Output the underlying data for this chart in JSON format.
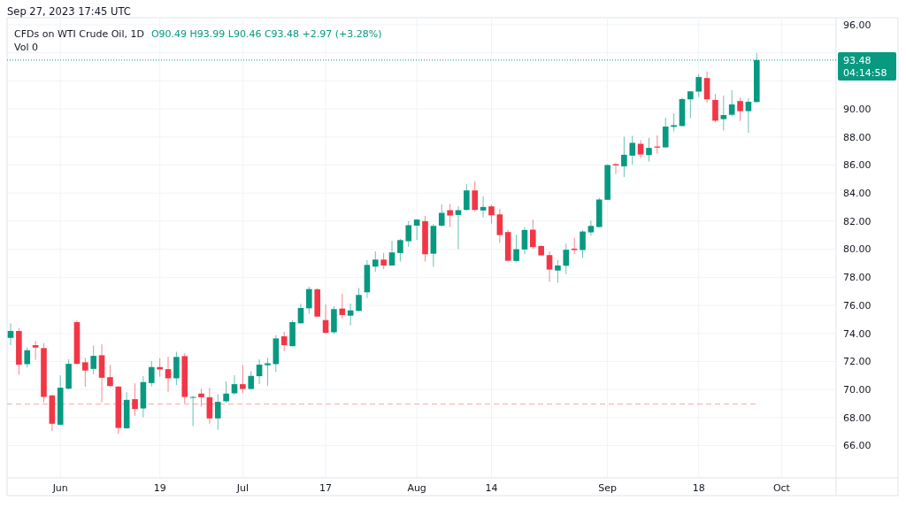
{
  "chart_data": {
    "type": "candlestick",
    "title": "CFDs on WTI Crude Oil, 1D",
    "subtitle": "Sep 27, 2023 17:45 UTC",
    "annotations": [
      "O90.49 H93.99 L90.46 C93.48 +2.97 (+3.28%)",
      "Vol 0",
      "04:14:58"
    ],
    "categories": [
      null,
      null,
      null,
      null,
      null,
      null,
      "Jun",
      null,
      null,
      null,
      null,
      null,
      null,
      null,
      null,
      null,
      null,
      null,
      "19",
      null,
      null,
      null,
      null,
      null,
      null,
      null,
      null,
      null,
      "Jul",
      null,
      null,
      null,
      null,
      null,
      null,
      null,
      null,
      null,
      "17",
      null,
      null,
      null,
      null,
      null,
      null,
      null,
      null,
      null,
      null,
      "Aug",
      null,
      null,
      null,
      null,
      null,
      null,
      null,
      null,
      "14",
      null,
      null,
      null,
      null,
      null,
      null,
      null,
      null,
      null,
      null,
      null,
      null,
      null,
      "Sep",
      null,
      null,
      null,
      null,
      null,
      null,
      null,
      null,
      null,
      null,
      "18",
      null,
      null,
      null,
      null,
      null,
      null,
      null,
      null,
      null,
      "Oct",
      null,
      null,
      null,
      null,
      null,
      null
    ],
    "ohlc": [
      [
        73.68,
        74.72,
        73.16,
        74.17
      ],
      [
        74.17,
        74.36,
        71.05,
        71.77
      ],
      [
        71.81,
        72.99,
        71.56,
        72.8
      ],
      [
        73.16,
        73.47,
        72.11,
        72.99
      ],
      [
        72.95,
        73.31,
        69.09,
        69.47
      ],
      [
        69.58,
        69.62,
        67.05,
        67.56
      ],
      [
        67.49,
        71.01,
        67.45,
        70.13
      ],
      [
        70.06,
        72.15,
        70.0,
        71.83
      ],
      [
        74.8,
        74.93,
        71.8,
        71.83
      ],
      [
        71.94,
        72.27,
        70.19,
        71.35
      ],
      [
        71.47,
        73.14,
        71.09,
        72.4
      ],
      [
        72.44,
        73.22,
        69.09,
        70.84
      ],
      [
        70.88,
        71.75,
        70.21,
        70.25
      ],
      [
        70.21,
        70.25,
        66.84,
        67.26
      ],
      [
        67.24,
        69.81,
        67.2,
        69.26
      ],
      [
        69.31,
        70.44,
        68.13,
        68.61
      ],
      [
        68.65,
        70.95,
        68.02,
        70.53
      ],
      [
        70.46,
        72.02,
        70.21,
        71.6
      ],
      [
        71.6,
        72.23,
        70.91,
        71.43
      ],
      [
        71.45,
        72.34,
        69.83,
        70.8
      ],
      [
        70.8,
        72.69,
        70.32,
        72.32
      ],
      [
        72.38,
        72.57,
        69.01,
        69.47
      ],
      [
        69.41,
        69.54,
        67.39,
        69.47
      ],
      [
        69.71,
        70.04,
        68.78,
        69.45
      ],
      [
        69.45,
        70.11,
        67.56,
        67.94
      ],
      [
        67.94,
        69.66,
        67.12,
        69.12
      ],
      [
        69.16,
        70.57,
        69.05,
        69.71
      ],
      [
        69.73,
        71.01,
        69.62,
        70.38
      ],
      [
        70.38,
        71.75,
        69.73,
        70.04
      ],
      [
        70.04,
        71.31,
        70.0,
        70.97
      ],
      [
        70.95,
        72.15,
        70.38,
        71.77
      ],
      [
        71.73,
        72.27,
        70.27,
        71.87
      ],
      [
        71.81,
        73.89,
        71.26,
        73.64
      ],
      [
        73.79,
        74.11,
        72.74,
        73.16
      ],
      [
        73.09,
        74.93,
        73.07,
        74.8
      ],
      [
        74.72,
        76.11,
        74.7,
        75.81
      ],
      [
        75.79,
        77.33,
        75.41,
        77.16
      ],
      [
        77.14,
        77.24,
        75.16,
        75.2
      ],
      [
        74.95,
        76.06,
        73.96,
        74.04
      ],
      [
        74.08,
        75.94,
        73.96,
        75.73
      ],
      [
        75.77,
        76.82,
        75.05,
        75.31
      ],
      [
        75.26,
        76.13,
        74.57,
        75.64
      ],
      [
        75.6,
        77.24,
        75.58,
        76.74
      ],
      [
        76.93,
        79.22,
        76.53,
        78.88
      ],
      [
        78.76,
        79.85,
        78.38,
        79.26
      ],
      [
        79.26,
        79.73,
        78.59,
        78.84
      ],
      [
        78.84,
        80.59,
        78.82,
        79.77
      ],
      [
        79.73,
        80.74,
        79.12,
        80.65
      ],
      [
        80.57,
        82.0,
        80.17,
        81.71
      ],
      [
        81.68,
        82.15,
        80.65,
        82.11
      ],
      [
        82.0,
        82.38,
        79.12,
        79.64
      ],
      [
        79.68,
        81.79,
        78.74,
        81.66
      ],
      [
        81.68,
        83.2,
        81.6,
        82.59
      ],
      [
        82.78,
        83.22,
        81.58,
        82.4
      ],
      [
        82.44,
        83.05,
        80.0,
        82.78
      ],
      [
        82.8,
        84.63,
        82.74,
        84.19
      ],
      [
        84.19,
        84.84,
        82.67,
        82.8
      ],
      [
        82.76,
        83.77,
        82.27,
        83.01
      ],
      [
        83.05,
        83.16,
        81.83,
        82.42
      ],
      [
        82.48,
        82.88,
        80.46,
        81.01
      ],
      [
        81.22,
        81.37,
        79.14,
        79.18
      ],
      [
        79.16,
        81.03,
        79.05,
        80.0
      ],
      [
        79.98,
        81.58,
        79.64,
        81.37
      ],
      [
        81.39,
        82.11,
        80.02,
        80.15
      ],
      [
        80.23,
        80.27,
        79.54,
        79.56
      ],
      [
        79.58,
        79.85,
        77.68,
        78.55
      ],
      [
        78.48,
        79.22,
        77.62,
        78.84
      ],
      [
        78.82,
        80.4,
        78.23,
        79.96
      ],
      [
        80.04,
        80.8,
        79.64,
        79.94
      ],
      [
        79.94,
        81.37,
        79.37,
        81.26
      ],
      [
        81.2,
        82.04,
        80.95,
        81.66
      ],
      [
        81.58,
        83.66,
        81.56,
        83.54
      ],
      [
        83.52,
        86.04,
        83.5,
        86.0
      ],
      [
        86.06,
        86.14,
        85.36,
        85.97
      ],
      [
        85.91,
        88.02,
        85.15,
        86.73
      ],
      [
        86.67,
        88.08,
        86.03,
        87.58
      ],
      [
        87.51,
        87.77,
        86.5,
        86.75
      ],
      [
        86.71,
        87.94,
        86.25,
        87.22
      ],
      [
        87.32,
        88.11,
        86.8,
        87.24
      ],
      [
        87.26,
        89.37,
        87.24,
        88.74
      ],
      [
        88.72,
        89.67,
        88.4,
        88.84
      ],
      [
        88.78,
        90.79,
        88.76,
        90.7
      ],
      [
        90.68,
        91.25,
        89.33,
        91.25
      ],
      [
        91.23,
        92.48,
        90.85,
        92.27
      ],
      [
        92.2,
        92.67,
        90.45,
        90.68
      ],
      [
        90.64,
        91.06,
        89.03,
        89.16
      ],
      [
        89.27,
        90.96,
        88.46,
        89.56
      ],
      [
        89.58,
        91.32,
        89.46,
        90.32
      ],
      [
        90.56,
        90.81,
        89.14,
        89.84
      ],
      [
        89.84,
        90.75,
        88.3,
        90.51
      ],
      [
        90.49,
        93.99,
        90.46,
        93.48
      ],
      null,
      null,
      null,
      null,
      null,
      null,
      null,
      null,
      null
    ],
    "ylim": [
      63.7,
      96.5
    ],
    "yticks": [
      {
        "value": 66,
        "label": "66.00"
      },
      {
        "value": 68,
        "label": "68.00"
      },
      {
        "value": 70,
        "label": "70.00"
      },
      {
        "value": 72,
        "label": "72.00"
      },
      {
        "value": 74,
        "label": "74.00"
      },
      {
        "value": 76,
        "label": "76.00"
      },
      {
        "value": 78,
        "label": "78.00"
      },
      {
        "value": 80,
        "label": "80.00"
      },
      {
        "value": 82,
        "label": "82.00"
      },
      {
        "value": 84,
        "label": "84.00"
      },
      {
        "value": 86,
        "label": "86.00"
      },
      {
        "value": 88,
        "label": "88.00"
      },
      {
        "value": 90,
        "label": "90.00"
      },
      {
        "value": 92,
        "label": null
      },
      {
        "value": 94,
        "label": null
      },
      {
        "value": 96,
        "label": "96.00"
      }
    ],
    "grid": true,
    "ref_lines": [
      {
        "axis": "y",
        "value": 93.48,
        "label": "93.48",
        "color": "#089981",
        "line_style": "dotted"
      },
      {
        "axis": "y",
        "value": 68.96,
        "color": "#f7a9a7",
        "line_style": "dashed"
      }
    ]
  }
}
